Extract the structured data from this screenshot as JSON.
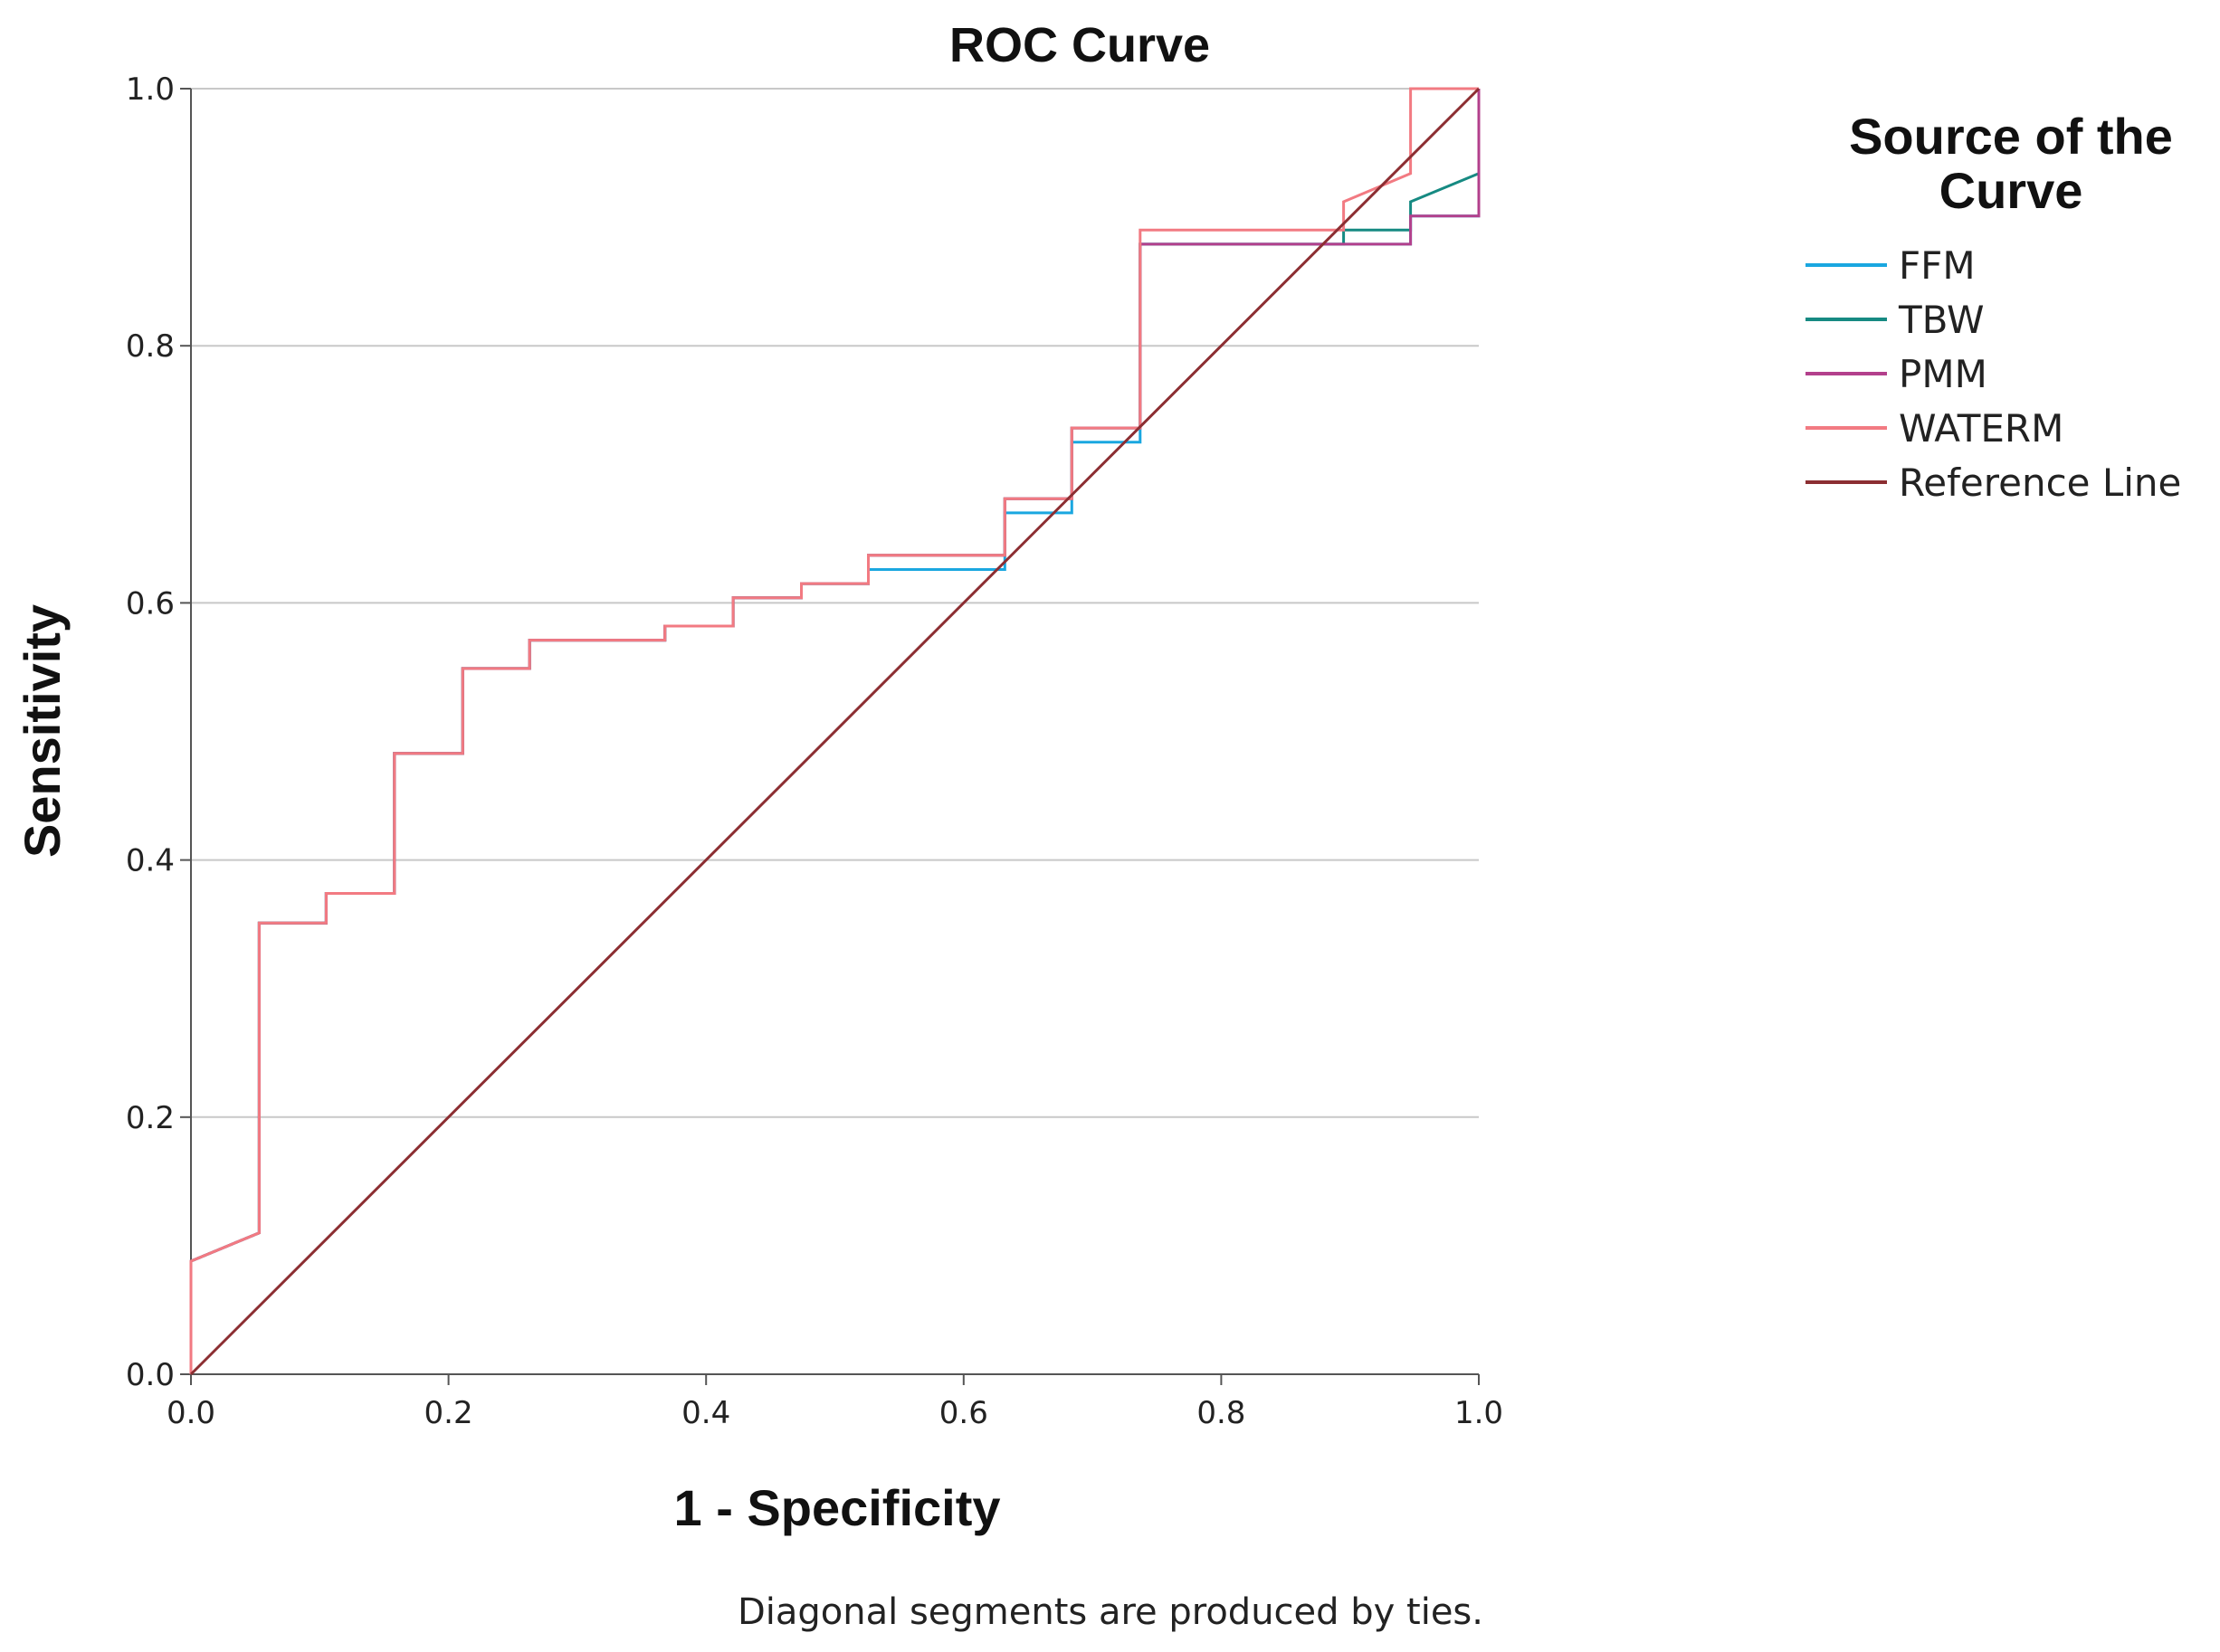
{
  "chart_data": {
    "type": "line",
    "title": "ROC Curve",
    "xlabel": "1 - Specificity",
    "ylabel": "Sensitivity",
    "xlim": [
      0,
      1
    ],
    "ylim": [
      0,
      1
    ],
    "x_ticks": [
      "0.0",
      "0.2",
      "0.4",
      "0.6",
      "0.8",
      "1.0"
    ],
    "y_ticks": [
      "0.0",
      "0.2",
      "0.4",
      "0.6",
      "0.8",
      "1.0"
    ],
    "grid": "horizontal",
    "legend_title": "Source of the Curve",
    "legend_position": "right",
    "footnote": "Diagonal segments are produced by ties.",
    "series": [
      {
        "name": "FFM",
        "color": "#1aa7e0",
        "points": [
          [
            0,
            0
          ],
          [
            0,
            0.088
          ],
          [
            0.053,
            0.11
          ],
          [
            0.053,
            0.351
          ],
          [
            0.105,
            0.351
          ],
          [
            0.105,
            0.374
          ],
          [
            0.158,
            0.374
          ],
          [
            0.158,
            0.483
          ],
          [
            0.211,
            0.483
          ],
          [
            0.211,
            0.549
          ],
          [
            0.263,
            0.549
          ],
          [
            0.263,
            0.571
          ],
          [
            0.368,
            0.571
          ],
          [
            0.368,
            0.582
          ],
          [
            0.421,
            0.582
          ],
          [
            0.421,
            0.604
          ],
          [
            0.474,
            0.604
          ],
          [
            0.474,
            0.615
          ],
          [
            0.526,
            0.615
          ],
          [
            0.526,
            0.626
          ],
          [
            0.632,
            0.626
          ],
          [
            0.632,
            0.67
          ],
          [
            0.684,
            0.67
          ],
          [
            0.684,
            0.725
          ],
          [
            0.737,
            0.725
          ],
          [
            0.737,
            0.879
          ],
          [
            0.947,
            0.879
          ],
          [
            0.947,
            0.901
          ],
          [
            1.0,
            0.901
          ],
          [
            1.0,
            1.0
          ]
        ]
      },
      {
        "name": "TBW",
        "color": "#168a82",
        "points": [
          [
            0,
            0
          ],
          [
            0,
            0.088
          ],
          [
            0.053,
            0.11
          ],
          [
            0.053,
            0.351
          ],
          [
            0.105,
            0.351
          ],
          [
            0.105,
            0.374
          ],
          [
            0.158,
            0.374
          ],
          [
            0.158,
            0.483
          ],
          [
            0.211,
            0.483
          ],
          [
            0.211,
            0.549
          ],
          [
            0.263,
            0.549
          ],
          [
            0.263,
            0.571
          ],
          [
            0.368,
            0.571
          ],
          [
            0.368,
            0.582
          ],
          [
            0.421,
            0.582
          ],
          [
            0.421,
            0.604
          ],
          [
            0.474,
            0.604
          ],
          [
            0.474,
            0.615
          ],
          [
            0.526,
            0.615
          ],
          [
            0.526,
            0.637
          ],
          [
            0.632,
            0.637
          ],
          [
            0.632,
            0.681
          ],
          [
            0.684,
            0.681
          ],
          [
            0.684,
            0.736
          ],
          [
            0.737,
            0.736
          ],
          [
            0.737,
            0.879
          ],
          [
            0.895,
            0.879
          ],
          [
            0.895,
            0.89
          ],
          [
            0.947,
            0.89
          ],
          [
            0.947,
            0.912
          ],
          [
            1.0,
            0.934
          ],
          [
            1.0,
            1.0
          ]
        ]
      },
      {
        "name": "PMM",
        "color": "#b3408c",
        "points": [
          [
            0,
            0
          ],
          [
            0,
            0.088
          ],
          [
            0.053,
            0.11
          ],
          [
            0.053,
            0.351
          ],
          [
            0.105,
            0.351
          ],
          [
            0.105,
            0.374
          ],
          [
            0.158,
            0.374
          ],
          [
            0.158,
            0.483
          ],
          [
            0.211,
            0.483
          ],
          [
            0.211,
            0.549
          ],
          [
            0.263,
            0.549
          ],
          [
            0.263,
            0.571
          ],
          [
            0.368,
            0.571
          ],
          [
            0.368,
            0.582
          ],
          [
            0.421,
            0.582
          ],
          [
            0.421,
            0.604
          ],
          [
            0.474,
            0.604
          ],
          [
            0.474,
            0.615
          ],
          [
            0.526,
            0.615
          ],
          [
            0.526,
            0.637
          ],
          [
            0.632,
            0.637
          ],
          [
            0.632,
            0.681
          ],
          [
            0.684,
            0.681
          ],
          [
            0.684,
            0.736
          ],
          [
            0.737,
            0.736
          ],
          [
            0.737,
            0.879
          ],
          [
            0.947,
            0.879
          ],
          [
            0.947,
            0.901
          ],
          [
            1.0,
            0.901
          ],
          [
            1.0,
            1.0
          ]
        ]
      },
      {
        "name": "WATERM",
        "color": "#f27a82",
        "points": [
          [
            0,
            0
          ],
          [
            0,
            0.088
          ],
          [
            0.053,
            0.11
          ],
          [
            0.053,
            0.351
          ],
          [
            0.105,
            0.351
          ],
          [
            0.105,
            0.374
          ],
          [
            0.158,
            0.374
          ],
          [
            0.158,
            0.483
          ],
          [
            0.211,
            0.483
          ],
          [
            0.211,
            0.549
          ],
          [
            0.263,
            0.549
          ],
          [
            0.263,
            0.571
          ],
          [
            0.368,
            0.571
          ],
          [
            0.368,
            0.582
          ],
          [
            0.421,
            0.582
          ],
          [
            0.421,
            0.604
          ],
          [
            0.474,
            0.604
          ],
          [
            0.474,
            0.615
          ],
          [
            0.526,
            0.615
          ],
          [
            0.526,
            0.637
          ],
          [
            0.632,
            0.637
          ],
          [
            0.632,
            0.681
          ],
          [
            0.684,
            0.681
          ],
          [
            0.684,
            0.736
          ],
          [
            0.737,
            0.736
          ],
          [
            0.737,
            0.89
          ],
          [
            0.895,
            0.89
          ],
          [
            0.895,
            0.912
          ],
          [
            0.947,
            0.934
          ],
          [
            0.947,
            1.0
          ],
          [
            1.0,
            1.0
          ]
        ]
      },
      {
        "name": "Reference Line",
        "color": "#8c2e32",
        "points": [
          [
            0,
            0
          ],
          [
            1,
            1
          ]
        ]
      }
    ]
  }
}
